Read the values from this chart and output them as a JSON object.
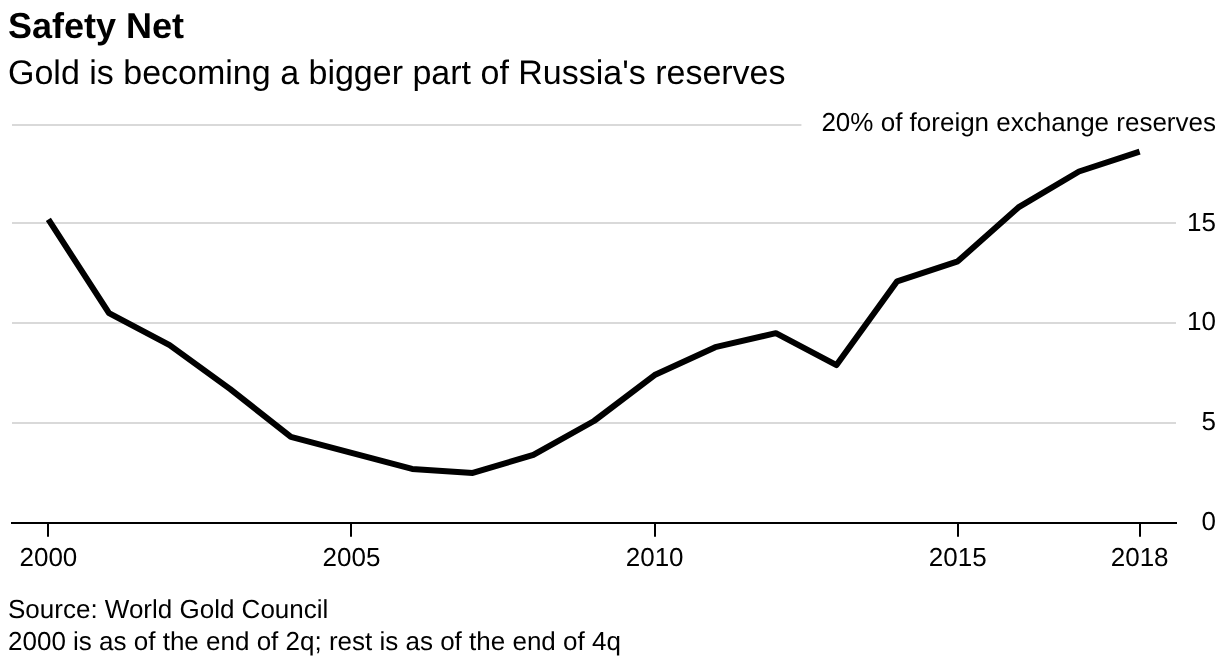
{
  "chart_data": {
    "type": "line",
    "title": "Safety Net",
    "subtitle": "Gold is becoming a bigger part of Russia's reserves",
    "x": [
      2000,
      2001,
      2002,
      2003,
      2004,
      2005,
      2006,
      2007,
      2008,
      2009,
      2010,
      2011,
      2012,
      2013,
      2014,
      2015,
      2016,
      2017,
      2018
    ],
    "series": [
      {
        "color": "#000000",
        "values": [
          15.2,
          10.5,
          8.9,
          6.7,
          4.3,
          3.5,
          2.7,
          2.5,
          3.4,
          5.1,
          7.4,
          8.8,
          9.5,
          7.9,
          12.1,
          13.1,
          15.8,
          17.6,
          18.6
        ]
      }
    ],
    "xlim": [
      1999.4,
      2018.6
    ],
    "xticks": [
      2000,
      2005,
      2010,
      2015,
      2018
    ],
    "ylim": [
      0,
      20
    ],
    "yticks": [
      0,
      5,
      10,
      15,
      {
        "value": 20,
        "label": "20% of foreign exchange reserves"
      }
    ],
    "grid": "y",
    "legend": false,
    "marker": "none",
    "line_style": "solid",
    "annotations": [
      "Source: World Gold Council",
      "2000 is as of the end of 2q; rest is as of the end of 4q"
    ]
  }
}
